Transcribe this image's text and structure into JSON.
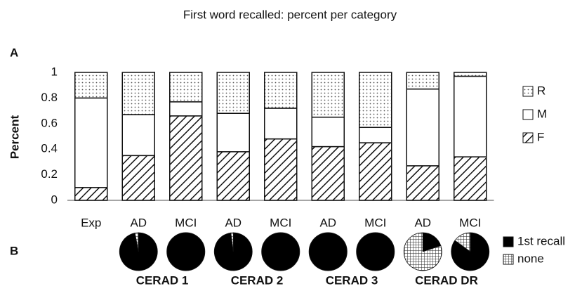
{
  "chart_data": [
    {
      "type": "bar",
      "stacked": true,
      "title": "First word recalled: percent per category",
      "panel": "A",
      "ylabel": "Percent",
      "categories": [
        "Exp",
        "AD",
        "MCI",
        "AD",
        "MCI",
        "AD",
        "MCI",
        "AD",
        "MCI"
      ],
      "series": [
        {
          "name": "F",
          "pattern": "hatch",
          "values": [
            0.1,
            0.35,
            0.66,
            0.38,
            0.48,
            0.42,
            0.45,
            0.27,
            0.34
          ]
        },
        {
          "name": "M",
          "pattern": "solid",
          "values": [
            0.7,
            0.32,
            0.11,
            0.3,
            0.24,
            0.23,
            0.12,
            0.6,
            0.63
          ]
        },
        {
          "name": "R",
          "pattern": "dots",
          "values": [
            0.2,
            0.33,
            0.23,
            0.32,
            0.28,
            0.35,
            0.43,
            0.13,
            0.03
          ]
        }
      ],
      "ylim": [
        0,
        1
      ],
      "yticks": [
        0,
        0.2,
        0.4,
        0.6,
        0.8,
        1
      ]
    },
    {
      "type": "pie",
      "panel": "B",
      "groups": [
        "CERAD 1",
        "CERAD 2",
        "CERAD 3",
        "CERAD DR"
      ],
      "series": [
        {
          "name": "1st recall",
          "pattern": "solid-black"
        },
        {
          "name": "none",
          "pattern": "grid"
        }
      ],
      "pies": [
        [
          97,
          3
        ],
        [
          100,
          0
        ],
        [
          98,
          2
        ],
        [
          100,
          0
        ],
        [
          100,
          0
        ],
        [
          100,
          0
        ],
        [
          20,
          80
        ],
        [
          85,
          15
        ]
      ]
    }
  ]
}
